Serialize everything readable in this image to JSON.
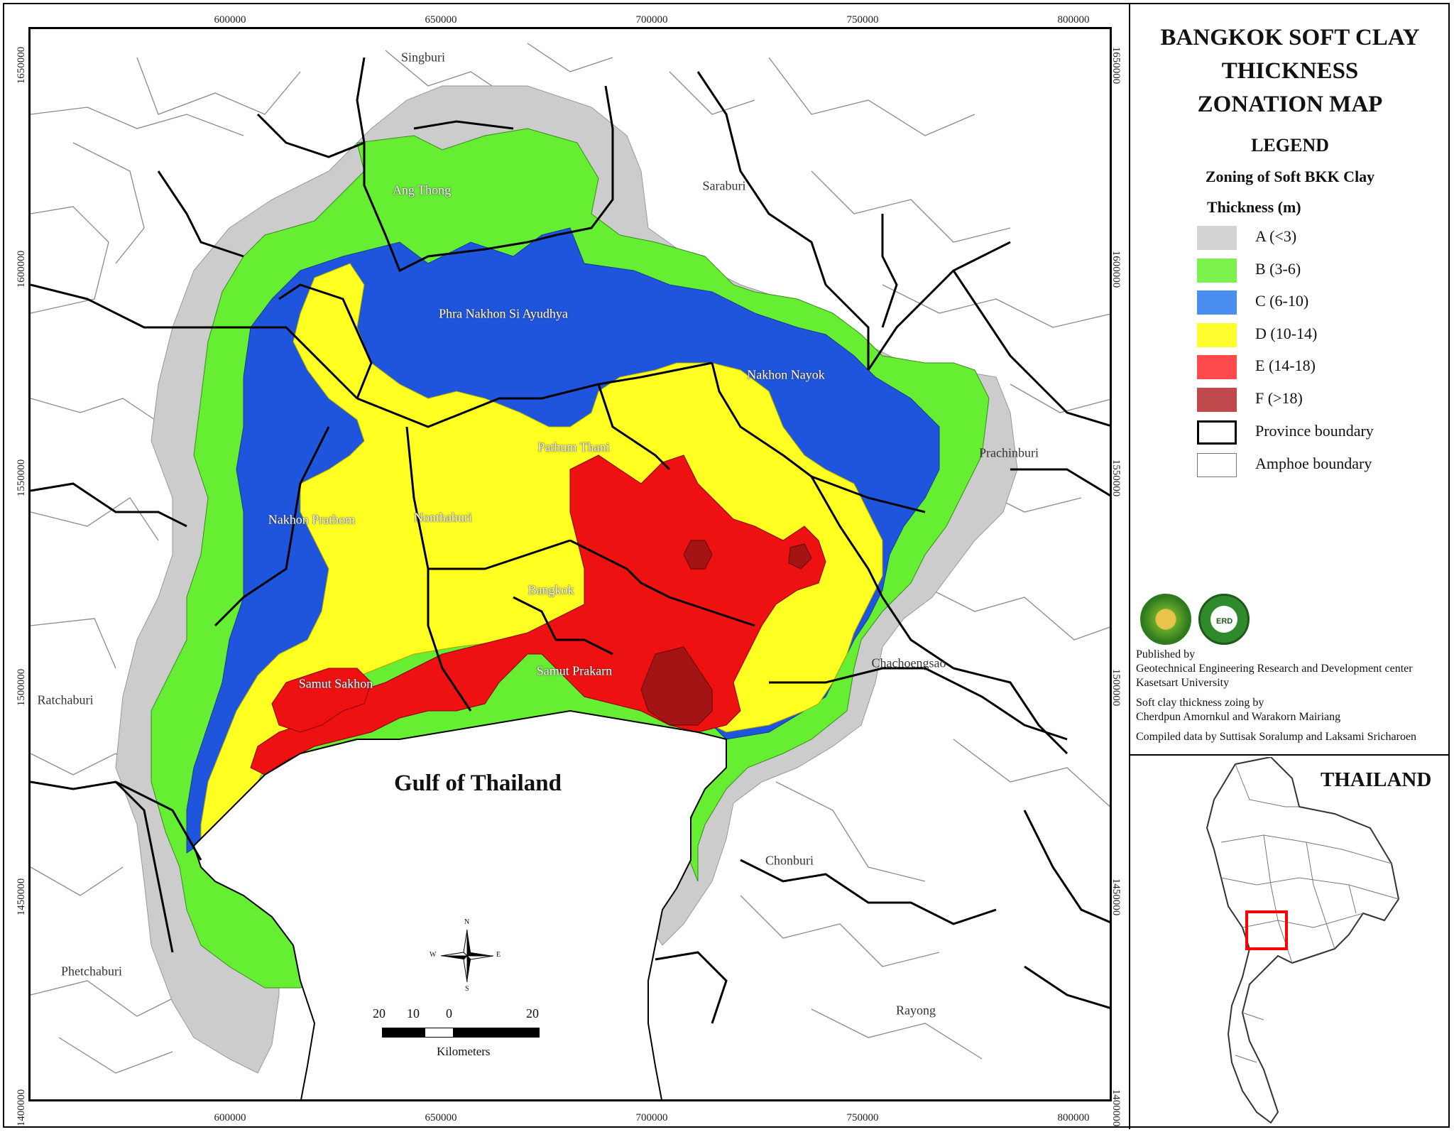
{
  "map": {
    "title_lines": [
      "BANGKOK SOFT CLAY",
      "THICKNESS",
      "ZONATION MAP"
    ],
    "x_ticks": [
      "600000",
      "650000",
      "700000",
      "750000",
      "800000"
    ],
    "y_ticks": [
      "1650000",
      "1600000",
      "1550000",
      "1500000",
      "1450000",
      "1400000"
    ],
    "sea_label": "Gulf of Thailand",
    "places_outer": [
      "Singburi",
      "Saraburi",
      "Prachinburi",
      "Chachoengsao",
      "Chonburi",
      "Rayong",
      "Ratchaburi",
      "Phetchaburi"
    ],
    "places_inner": [
      "Ang Thong",
      "Phra Nakhon Si Ayudhya",
      "Nakhon Nayok",
      "Pathum Thani",
      "Nakhon Prathom",
      "Nonthaburi",
      "Bangkok",
      "Samut Sakhon",
      "Samut Prakarn"
    ]
  },
  "legend": {
    "heading": "LEGEND",
    "subheading": "Zoning of Soft BKK Clay",
    "thickness_label": "Thickness (m)",
    "items": [
      {
        "label": "A (<3)",
        "color": "#d3d3d3"
      },
      {
        "label": "B (3-6)",
        "color": "#7cf24f"
      },
      {
        "label": "C (6-10)",
        "color": "#4a8ef0"
      },
      {
        "label": "D (10-14)",
        "color": "#ffff30"
      },
      {
        "label": "E (14-18)",
        "color": "#ff4b4b"
      },
      {
        "label": "F (>18)",
        "color": "#c0494c"
      },
      {
        "label": "Province boundary",
        "color": "#ffffff"
      },
      {
        "label": "Amphoe boundary",
        "color": "#ffffff"
      }
    ]
  },
  "zone_colors": {
    "A": "#cccccc",
    "B": "#66ee33",
    "C": "#1f55dd",
    "D": "#ffff22",
    "E": "#ee1111",
    "F": "#a31515"
  },
  "credits": {
    "published_by": "Published by",
    "center": "Geotechnical Engineering Research and Development center",
    "university": "Kasetsart University",
    "zoning_by": "Soft clay thickness zoing by",
    "zoning_authors": "Cherdpun Amornkul and Warakorn Mairiang",
    "compiled": "Compiled data by Suttisak Soralump and Laksami Sricharoen",
    "logo_text": "ERD"
  },
  "scale_bar": {
    "ticks": [
      "20",
      "10",
      "0",
      "20"
    ],
    "unit": "Kilometers"
  },
  "compass": {
    "n": "N",
    "s": "S",
    "e": "E",
    "w": "W"
  },
  "inset": {
    "title": "THAILAND",
    "highlight_color": "#ff0000"
  }
}
